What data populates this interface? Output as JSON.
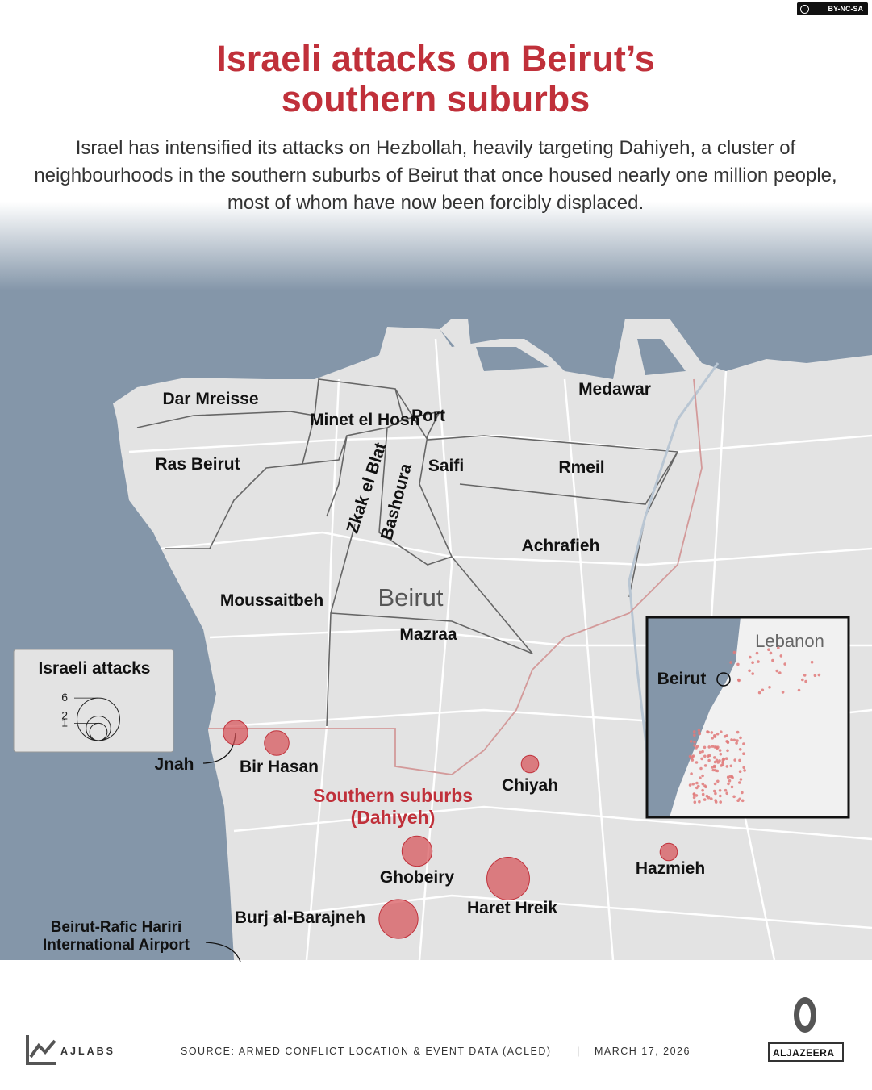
{
  "header": {
    "license": "BY-NC-SA",
    "title": "Israeli attacks on Beirut’s southern suburbs",
    "subtitle": "Israel has intensified its attacks on Hezbollah, heavily targeting Dahiyeh, a cluster of neighbourhoods in the southern suburbs of Beirut that once housed nearly one million people, most of whom have now been forcibly displaced."
  },
  "map": {
    "city_label": "Beirut",
    "neighbourhoods": [
      "Dar Mreisse",
      "Minet el Hosn",
      "Port",
      "Medawar",
      "Ras Beirut",
      "Saifi",
      "Rmeil",
      "Zkak el Blat",
      "Bashoura",
      "Achrafieh",
      "Moussaitbeh",
      "Mazraa"
    ],
    "region_label": "Southern suburbs (Dahiyeh)",
    "airport_label": "Beirut-Rafic Hariri International Airport",
    "inset": {
      "country": "Lebanon",
      "city": "Beirut"
    }
  },
  "legend": {
    "title": "Israeli attacks",
    "sizes": [
      6,
      2,
      1
    ]
  },
  "attacks": [
    {
      "name": "Jnah",
      "count": 2
    },
    {
      "name": "Bir Hasan",
      "count": 2
    },
    {
      "name": "Chiyah",
      "count": 1
    },
    {
      "name": "Ghobeiry",
      "count": 3
    },
    {
      "name": "Haret Hreik",
      "count": 6
    },
    {
      "name": "Burj al-Barajneh",
      "count": 5
    },
    {
      "name": "Hazmieh",
      "count": 1
    }
  ],
  "footer": {
    "brand": "AJLABS",
    "source": "SOURCE:  ARMED CONFLICT LOCATION & EVENT DATA (ACLED)",
    "separator": "|",
    "date": "MARCH 17, 2026",
    "logo": "ALJAZEERA"
  }
}
